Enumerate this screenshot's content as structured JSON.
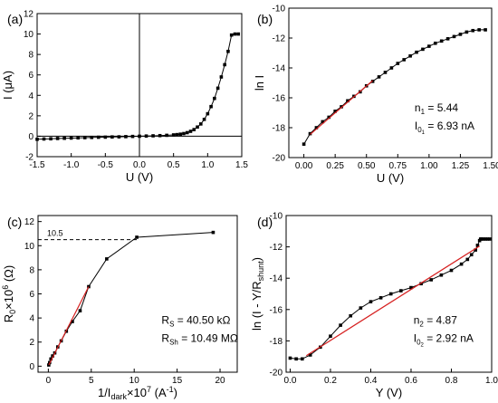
{
  "chart_data": [
    {
      "type": "line",
      "panel_label": "(a)",
      "xlabel": "U (V)",
      "ylabel": "I (μA)",
      "xlim": [
        -1.5,
        1.5
      ],
      "ylim": [
        -2,
        12
      ],
      "xticks": [
        -1.5,
        -1.0,
        -0.5,
        0.0,
        0.5,
        1.0,
        1.5
      ],
      "xtick_labels": [
        "-1.5",
        "-1.0",
        "-0.5",
        "0.0",
        "0.5",
        "1.0",
        "1.5"
      ],
      "yticks": [
        -2,
        0,
        2,
        4,
        6,
        8,
        10,
        12
      ],
      "ytick_labels": [
        "-2",
        "0",
        "2",
        "4",
        "6",
        "8",
        "10",
        "12"
      ],
      "zero_lines": true,
      "series": [
        {
          "color": "#000000",
          "x": [
            -1.5,
            -1.4,
            -1.3,
            -1.2,
            -1.1,
            -1.0,
            -0.9,
            -0.8,
            -0.7,
            -0.6,
            -0.5,
            -0.4,
            -0.3,
            -0.2,
            -0.1,
            0.0,
            0.1,
            0.2,
            0.3,
            0.4,
            0.5,
            0.55,
            0.6,
            0.65,
            0.7,
            0.75,
            0.8,
            0.85,
            0.9,
            0.95,
            1.0,
            1.05,
            1.1,
            1.15,
            1.2,
            1.25,
            1.3,
            1.35,
            1.4,
            1.45
          ],
          "y": [
            -0.3,
            -0.27,
            -0.25,
            -0.22,
            -0.2,
            -0.18,
            -0.16,
            -0.14,
            -0.12,
            -0.1,
            -0.09,
            -0.07,
            -0.06,
            -0.04,
            -0.02,
            0.0,
            0.02,
            0.04,
            0.06,
            0.09,
            0.13,
            0.16,
            0.2,
            0.26,
            0.35,
            0.48,
            0.65,
            0.9,
            1.2,
            1.65,
            2.2,
            2.9,
            3.7,
            4.7,
            5.8,
            7.0,
            8.3,
            9.9,
            10.0,
            10.0
          ]
        }
      ]
    },
    {
      "type": "line",
      "panel_label": "(b)",
      "xlabel": "U (V)",
      "ylabel": "ln I",
      "xlim": [
        -0.12,
        1.5
      ],
      "ylim": [
        -20,
        -10
      ],
      "xticks": [
        0.0,
        0.25,
        0.5,
        0.75,
        1.0,
        1.25,
        1.5
      ],
      "xtick_labels": [
        "0.00",
        "0.25",
        "0.50",
        "0.75",
        "1.00",
        "1.25",
        "1.50"
      ],
      "yticks": [
        -20,
        -18,
        -16,
        -14,
        -12,
        -10
      ],
      "ytick_labels": [
        "-20",
        "-18",
        "-16",
        "-14",
        "-12",
        "-10"
      ],
      "annotations": [
        "n",
        "1",
        " = 5.44",
        "I",
        "0",
        "1",
        " = 6.93 nA"
      ],
      "series": [
        {
          "color": "#000000",
          "x": [
            0.0,
            0.05,
            0.1,
            0.15,
            0.2,
            0.25,
            0.3,
            0.35,
            0.4,
            0.45,
            0.5,
            0.55,
            0.6,
            0.65,
            0.7,
            0.75,
            0.8,
            0.85,
            0.9,
            0.95,
            1.0,
            1.05,
            1.1,
            1.15,
            1.2,
            1.25,
            1.3,
            1.35,
            1.4,
            1.45
          ],
          "y": [
            -19.1,
            -18.4,
            -18.0,
            -17.6,
            -17.3,
            -16.9,
            -16.6,
            -16.2,
            -15.9,
            -15.6,
            -15.2,
            -14.9,
            -14.6,
            -14.3,
            -14.0,
            -13.7,
            -13.45,
            -13.2,
            -12.95,
            -12.75,
            -12.55,
            -12.35,
            -12.2,
            -12.05,
            -11.9,
            -11.75,
            -11.6,
            -11.5,
            -11.45,
            -11.45
          ]
        },
        {
          "color": "#d62020",
          "x": [
            0.05,
            0.55
          ],
          "y": [
            -18.45,
            -14.85
          ]
        }
      ]
    },
    {
      "type": "line",
      "panel_label": "(c)",
      "xlabel": "1/I",
      "xlabel_sub": "dark",
      "xlabel_rest": "×10",
      "xlabel_sup": "7",
      "xlabel_unit": "(A",
      "xlabel_unit_sup": "-1",
      "xlabel_close": ")",
      "ylabel": "R",
      "ylabel_sub": "0",
      "ylabel_rest": "×10",
      "ylabel_sup": "6",
      "ylabel_unit": "(Ω)",
      "xlim": [
        -1.2,
        22
      ],
      "ylim": [
        -0.5,
        12.5
      ],
      "xticks": [
        0,
        5,
        10,
        15,
        20
      ],
      "xtick_labels": [
        "0",
        "5",
        "10",
        "15",
        "20"
      ],
      "yticks": [
        0,
        2,
        4,
        6,
        8,
        10,
        12
      ],
      "ytick_labels": [
        "0",
        "2",
        "4",
        "6",
        "8",
        "10",
        "12"
      ],
      "reference_value": 10.5,
      "reference_label": "10.5",
      "annotations": [
        "R",
        "S",
        " = 40.50 kΩ",
        "R",
        "Sh",
        " = 10.49 MΩ"
      ],
      "series": [
        {
          "color": "#000000",
          "x": [
            0.05,
            0.15,
            0.3,
            0.5,
            0.75,
            1.1,
            1.5,
            2.1,
            2.8,
            3.7,
            4.7,
            6.8,
            10.3,
            19.2
          ],
          "y": [
            0.1,
            0.3,
            0.6,
            0.85,
            1.1,
            1.6,
            2.1,
            2.9,
            3.7,
            4.6,
            6.6,
            8.9,
            10.7,
            11.1
          ]
        },
        {
          "color": "#d62020",
          "x": [
            0.05,
            4.7
          ],
          "y": [
            0.1,
            6.6
          ]
        }
      ]
    },
    {
      "type": "line",
      "panel_label": "(d)",
      "xlabel": "Y (V)",
      "ylabel": "ln (I - Y/R",
      "ylabel_sub": "shunt",
      "ylabel_close": ")",
      "xlim": [
        -0.02,
        1.0
      ],
      "ylim": [
        -20,
        -10
      ],
      "xticks": [
        0.0,
        0.2,
        0.4,
        0.6,
        0.8,
        1.0
      ],
      "xtick_labels": [
        "0.0",
        "0.2",
        "0.4",
        "0.6",
        "0.8",
        "1.0"
      ],
      "yticks": [
        -20,
        -18,
        -16,
        -14,
        -12,
        -10
      ],
      "ytick_labels": [
        "-20",
        "-18",
        "-16",
        "-14",
        "-12",
        "-10"
      ],
      "annotations": [
        "n",
        "2",
        " = 4.87",
        "I",
        "0",
        "2",
        " = 2.92 nA"
      ],
      "series": [
        {
          "color": "#000000",
          "x": [
            0.0,
            0.03,
            0.06,
            0.1,
            0.15,
            0.2,
            0.25,
            0.3,
            0.35,
            0.4,
            0.45,
            0.5,
            0.55,
            0.6,
            0.65,
            0.7,
            0.75,
            0.8,
            0.85,
            0.88,
            0.9,
            0.92,
            0.93,
            0.94,
            0.945,
            0.95,
            0.96,
            0.97,
            0.98,
            0.99
          ],
          "y": [
            -19.1,
            -19.15,
            -19.15,
            -18.9,
            -18.4,
            -17.7,
            -17.0,
            -16.4,
            -15.9,
            -15.5,
            -15.25,
            -15.0,
            -14.8,
            -14.6,
            -14.35,
            -14.1,
            -13.8,
            -13.5,
            -13.1,
            -12.8,
            -12.5,
            -12.2,
            -11.9,
            -11.6,
            -11.5,
            -11.5,
            -11.5,
            -11.5,
            -11.5,
            -11.5
          ]
        },
        {
          "color": "#d62020",
          "x": [
            0.08,
            0.94
          ],
          "y": [
            -18.95,
            -11.95
          ]
        }
      ]
    }
  ]
}
